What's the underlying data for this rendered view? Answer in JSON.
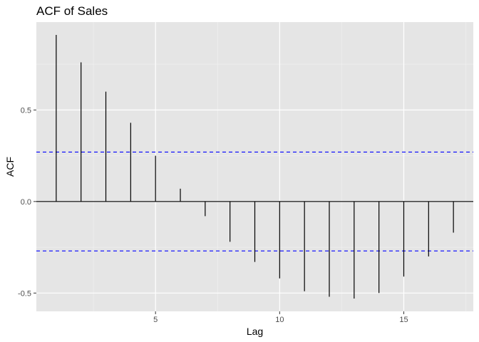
{
  "chart_data": {
    "type": "bar",
    "title": "ACF of Sales",
    "xlabel": "Lag",
    "ylabel": "ACF",
    "x": [
      1,
      2,
      3,
      4,
      5,
      6,
      7,
      8,
      9,
      10,
      11,
      12,
      13,
      14,
      15,
      16,
      17
    ],
    "values": [
      0.91,
      0.76,
      0.6,
      0.43,
      0.25,
      0.07,
      -0.08,
      -0.22,
      -0.33,
      -0.42,
      -0.49,
      -0.52,
      -0.53,
      -0.5,
      -0.41,
      -0.3,
      -0.17
    ],
    "xlim": [
      0.2,
      17.8
    ],
    "ylim": [
      -0.6,
      0.98
    ],
    "x_ticks": [
      5,
      10,
      15
    ],
    "x_tick_labels": [
      "5",
      "10",
      "15"
    ],
    "y_ticks": [
      -0.5,
      0.0,
      0.5
    ],
    "y_tick_labels": [
      "-0.5",
      "0.0",
      "0.5"
    ],
    "confidence_bounds": [
      0.27,
      -0.27
    ],
    "confidence_color": "#0000ff",
    "bar_color": "#000000",
    "panel_background": "#e5e5e5",
    "grid": true,
    "legend": "none"
  }
}
